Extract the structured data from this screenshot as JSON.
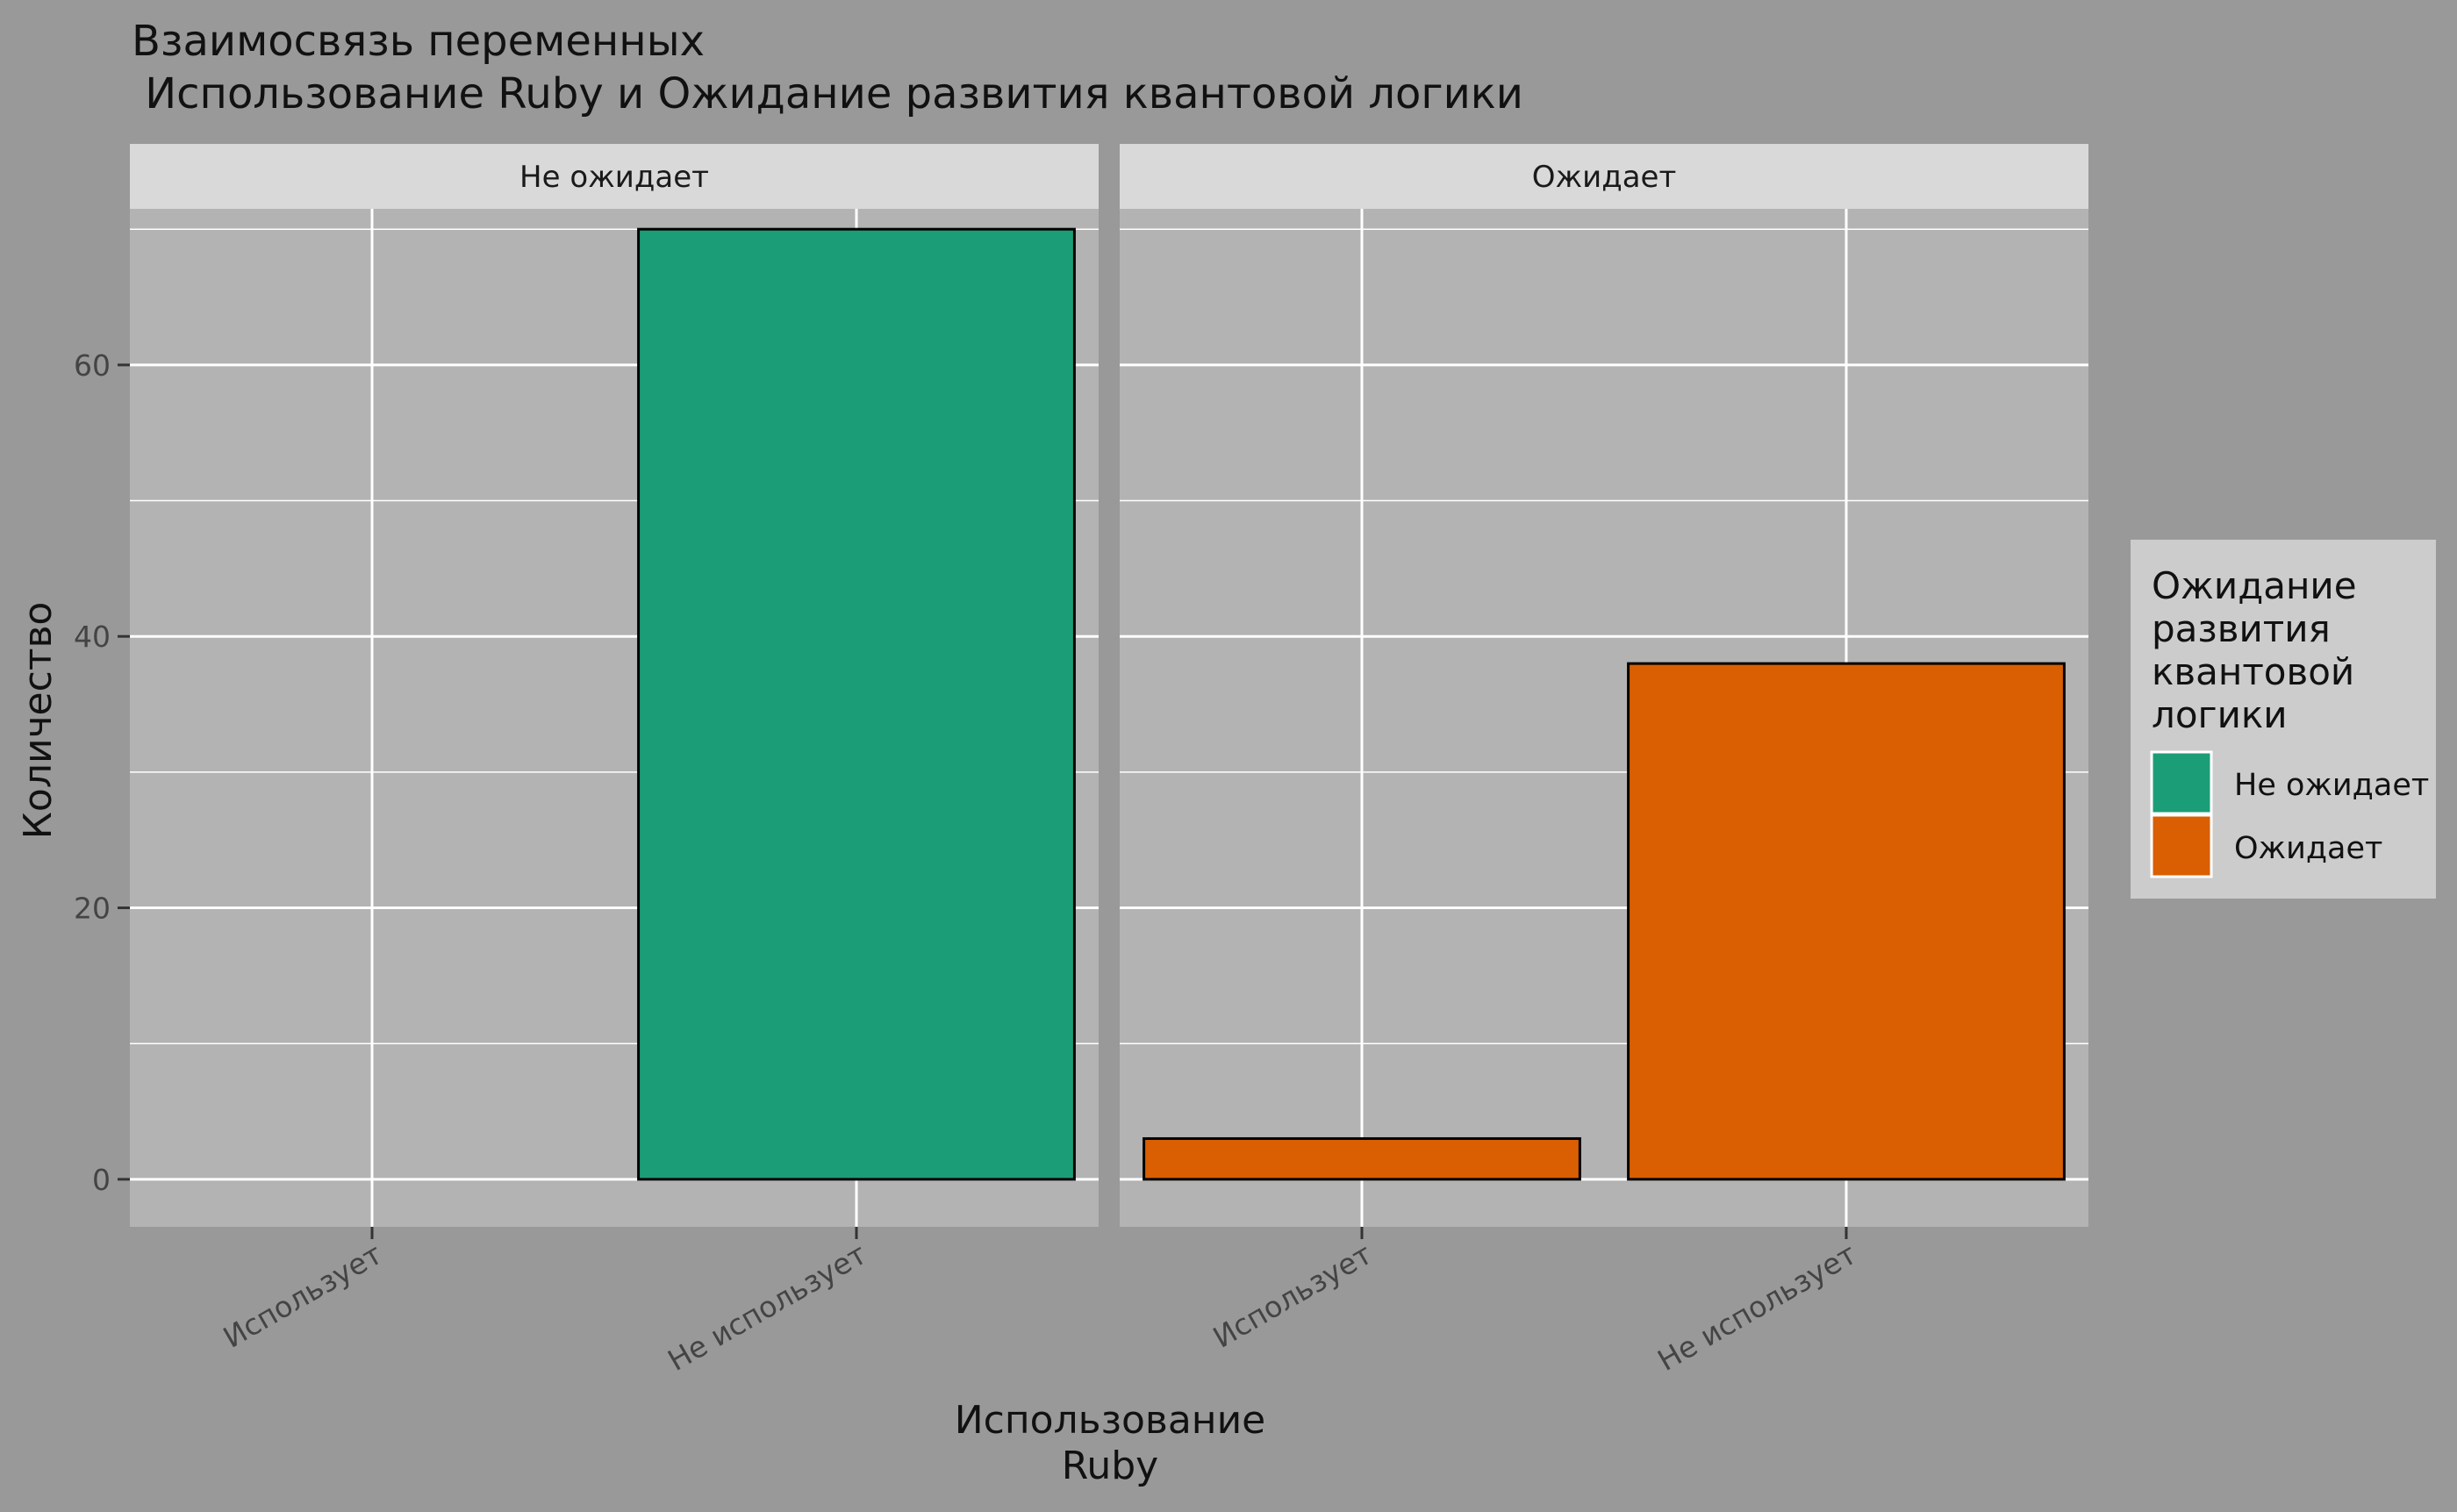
{
  "chart_data": {
    "type": "bar",
    "title_lines": [
      "Взаимосвязь переменных",
      " Использование Ruby и Ожидание развития квантовой логики"
    ],
    "facets": [
      "Не ожидает",
      "Ожидает"
    ],
    "categories": [
      "Использует",
      "Не использует"
    ],
    "series": [
      {
        "name": "Не ожидает",
        "facet": "Не ожидает",
        "values": [
          0,
          70
        ]
      },
      {
        "name": "Ожидает",
        "facet": "Ожидает",
        "values": [
          3,
          38
        ]
      }
    ],
    "xlabel_lines": [
      "Использование",
      "Ruby"
    ],
    "ylabel": "Количество",
    "yticks": [
      0,
      20,
      40,
      60
    ],
    "ylim": [
      -3.5,
      71.5
    ],
    "grid": true,
    "legend": {
      "title_lines": [
        "Ожидание",
        "развития",
        "квантовой",
        "логики"
      ],
      "placement": "right",
      "items": [
        "Не ожидает",
        "Ожидает"
      ]
    },
    "colors": {
      "Не ожидает": "#1B9E77",
      "Ожидает": "#D95F02",
      "panel_bg": "#B3B3B3",
      "plot_bg": "#999999",
      "strip_bg": "#D9D9D9",
      "legend_bg": "#CCCCCC",
      "grid": "#FFFFFF",
      "bar_outline": "#000000"
    }
  }
}
